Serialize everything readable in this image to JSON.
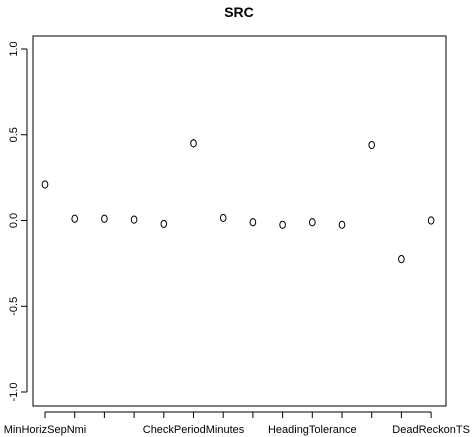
{
  "chart_data": {
    "type": "scatter",
    "title": "SRC",
    "xlabel": "",
    "ylabel": "",
    "ylim": [
      -1.0,
      1.0
    ],
    "yticks": [
      -1.0,
      -0.5,
      0.0,
      0.5,
      1.0
    ],
    "ytick_labels": [
      "-1.0",
      "-0.5",
      "0.0",
      "0.5",
      "1.0"
    ],
    "grid": false,
    "categories_count": 14,
    "x_tick_labels": [
      {
        "index": 0,
        "label": "MinHorizSepNmi"
      },
      {
        "index": 5,
        "label": "CheckPeriodMinutes"
      },
      {
        "index": 9,
        "label": "HeadingTolerance"
      },
      {
        "index": 13,
        "label": "DeadReckonTS"
      }
    ],
    "values": [
      0.21,
      0.01,
      0.01,
      0.005,
      -0.02,
      0.45,
      0.015,
      -0.01,
      -0.025,
      -0.01,
      -0.025,
      0.44,
      -0.225,
      0.0
    ],
    "err_low": [
      0.195,
      -0.005,
      -0.005,
      -0.01,
      -0.035,
      0.425,
      0.0,
      -0.03,
      -0.04,
      -0.03,
      -0.04,
      0.43,
      -0.245,
      -0.02
    ],
    "err_high": [
      0.225,
      0.025,
      0.025,
      0.02,
      -0.005,
      0.475,
      0.035,
      0.005,
      -0.01,
      0.01,
      -0.01,
      0.45,
      -0.21,
      0.015
    ]
  }
}
